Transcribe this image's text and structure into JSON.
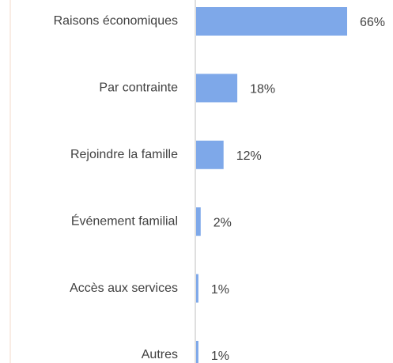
{
  "chart_data": {
    "type": "bar",
    "orientation": "horizontal",
    "categories": [
      "Raisons économiques",
      "Par contrainte",
      "Rejoindre la famille",
      "Événement familial",
      "Accès aux services",
      "Autres"
    ],
    "values": [
      66,
      18,
      12,
      2,
      1,
      1
    ],
    "value_labels": [
      "66%",
      "18%",
      "12%",
      "2%",
      "1%",
      "1%"
    ],
    "color": "#7ea8e9"
  }
}
